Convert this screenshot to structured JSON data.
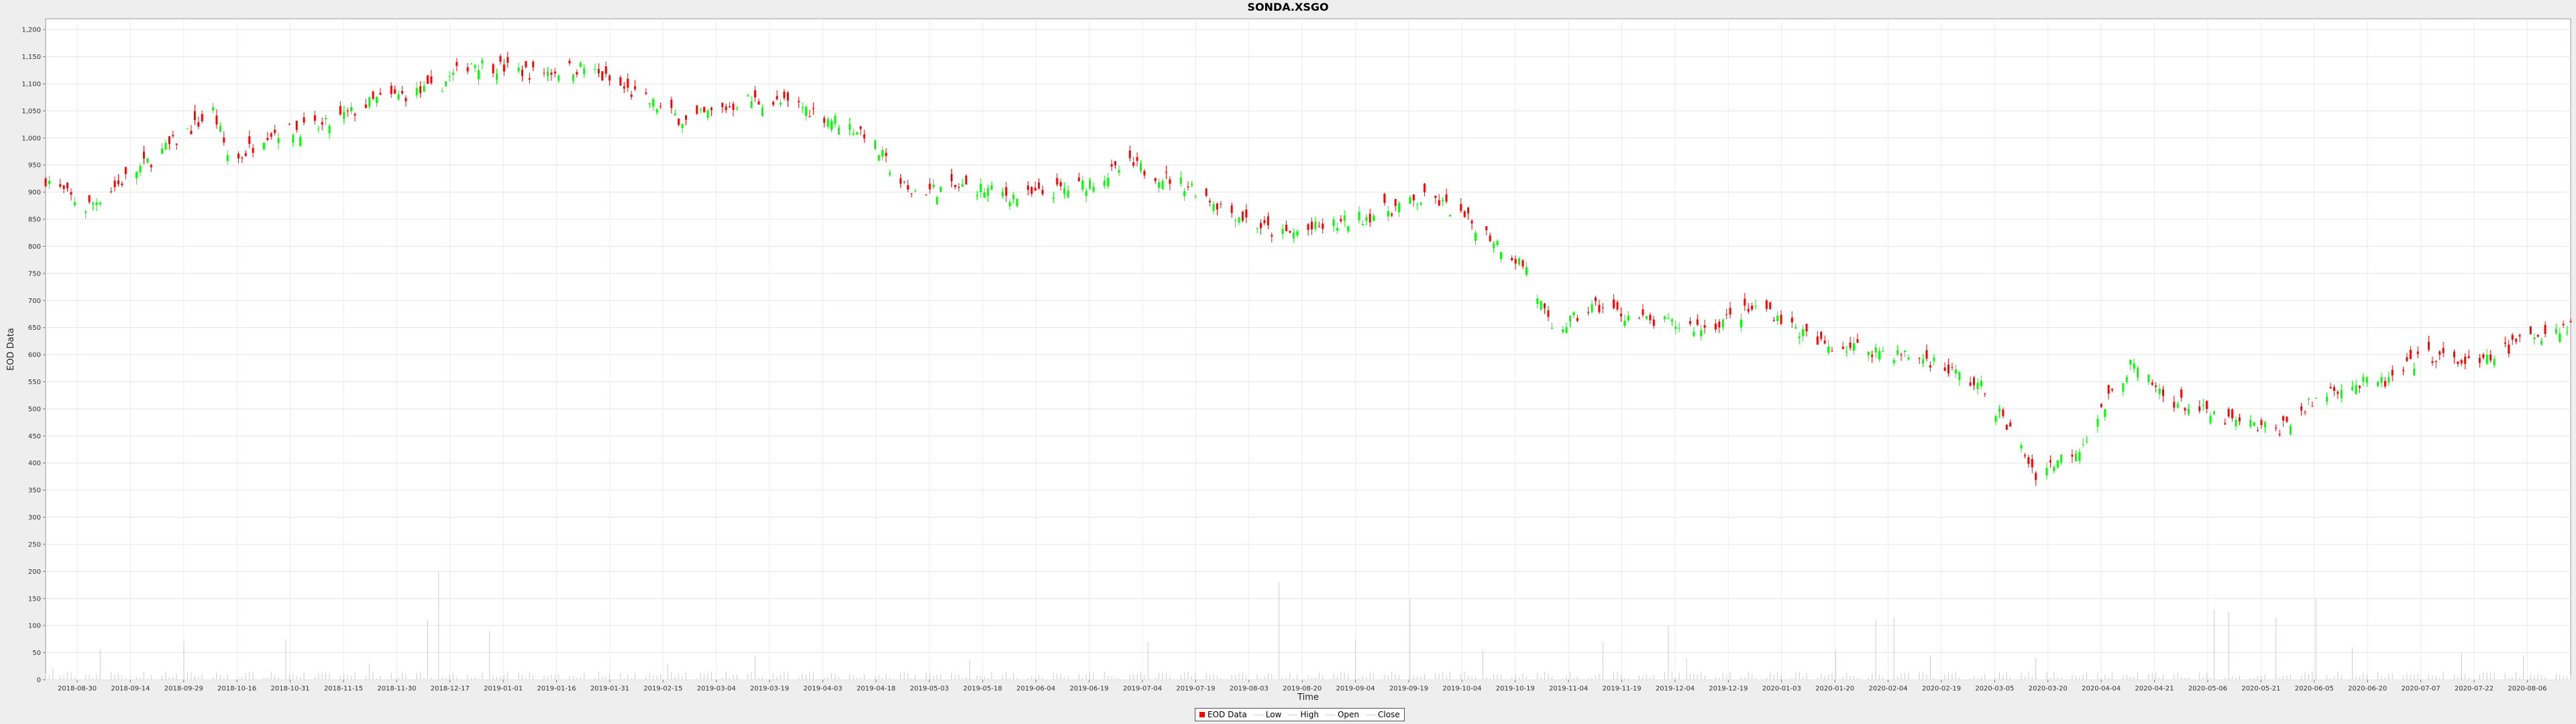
{
  "title": "SONDA.XSGO",
  "chart_data": {
    "type": "candlestick",
    "title": "SONDA.XSGO",
    "xlabel": "Time",
    "ylabel": "EOD Data",
    "ylim": [
      0,
      1220
    ],
    "xlim": [
      "2018-09-20",
      "2020-08-14"
    ],
    "grid": true,
    "legend_position": "bottom-center",
    "up_color": "#00ff00",
    "down_color": "#ff0000",
    "volume_color": "#cccccc",
    "y_ticks": [
      0,
      50,
      100,
      150,
      200,
      250,
      300,
      350,
      400,
      450,
      500,
      550,
      600,
      650,
      700,
      750,
      800,
      850,
      900,
      950,
      1000,
      1050,
      1100,
      1150,
      1200
    ],
    "y_tick_labels": [
      "0",
      "50",
      "100",
      "150",
      "200",
      "250",
      "300",
      "350",
      "400",
      "450",
      "500",
      "550",
      "600",
      "650",
      "700",
      "750",
      "800",
      "850",
      "900",
      "950",
      "1,000",
      "1,050",
      "1,100",
      "1,150",
      "1,200"
    ],
    "x_tick_labels": [
      "2018-08-30",
      "2018-09-14",
      "2018-09-29",
      "2018-10-16",
      "2018-10-31",
      "2018-11-15",
      "2018-11-30",
      "2018-12-17",
      "2019-01-01",
      "2019-01-16",
      "2019-01-31",
      "2019-02-15",
      "2019-03-04",
      "2019-03-19",
      "2019-04-03",
      "2019-04-18",
      "2019-05-03",
      "2019-05-18",
      "2019-06-04",
      "2019-06-19",
      "2019-07-04",
      "2019-07-19",
      "2019-08-03",
      "2019-08-20",
      "2019-09-04",
      "2019-09-19",
      "2019-10-04",
      "2019-10-19",
      "2019-11-04",
      "2019-11-19",
      "2019-12-04",
      "2019-12-19",
      "2020-01-03",
      "2020-01-20",
      "2020-02-04",
      "2020-02-19",
      "2020-03-05",
      "2020-03-20",
      "2020-04-04",
      "2020-04-21",
      "2020-05-06",
      "2020-05-21",
      "2020-06-05",
      "2020-06-20",
      "2020-07-07",
      "2020-07-22",
      "2020-08-06"
    ],
    "close_trend": [
      {
        "t": "2018-09-20",
        "v": 925
      },
      {
        "t": "2018-10-01",
        "v": 870
      },
      {
        "t": "2018-10-15",
        "v": 940
      },
      {
        "t": "2018-10-25",
        "v": 990
      },
      {
        "t": "2018-11-05",
        "v": 1050
      },
      {
        "t": "2018-11-10",
        "v": 950
      },
      {
        "t": "2018-11-20",
        "v": 1010
      },
      {
        "t": "2018-12-05",
        "v": 1020
      },
      {
        "t": "2018-12-20",
        "v": 1070
      },
      {
        "t": "2019-01-05",
        "v": 1090
      },
      {
        "t": "2019-01-15",
        "v": 1140
      },
      {
        "t": "2019-02-01",
        "v": 1120
      },
      {
        "t": "2019-02-15",
        "v": 1130
      },
      {
        "t": "2019-03-01",
        "v": 1080
      },
      {
        "t": "2019-03-15",
        "v": 1030
      },
      {
        "t": "2019-04-01",
        "v": 1070
      },
      {
        "t": "2019-04-15",
        "v": 1060
      },
      {
        "t": "2019-05-03",
        "v": 1010
      },
      {
        "t": "2019-05-15",
        "v": 900
      },
      {
        "t": "2019-06-01",
        "v": 910
      },
      {
        "t": "2019-06-15",
        "v": 890
      },
      {
        "t": "2019-07-01",
        "v": 910
      },
      {
        "t": "2019-07-15",
        "v": 950
      },
      {
        "t": "2019-08-01",
        "v": 910
      },
      {
        "t": "2019-08-10",
        "v": 870
      },
      {
        "t": "2019-08-25",
        "v": 820
      },
      {
        "t": "2019-09-10",
        "v": 840
      },
      {
        "t": "2019-09-25",
        "v": 870
      },
      {
        "t": "2019-10-06",
        "v": 890
      },
      {
        "t": "2019-10-20",
        "v": 830
      },
      {
        "t": "2019-11-01",
        "v": 760
      },
      {
        "t": "2019-11-08",
        "v": 640
      },
      {
        "t": "2019-11-20",
        "v": 690
      },
      {
        "t": "2019-12-05",
        "v": 660
      },
      {
        "t": "2019-12-20",
        "v": 650
      },
      {
        "t": "2020-01-05",
        "v": 690
      },
      {
        "t": "2020-01-20",
        "v": 620
      },
      {
        "t": "2020-02-04",
        "v": 610
      },
      {
        "t": "2020-02-20",
        "v": 590
      },
      {
        "t": "2020-03-05",
        "v": 540
      },
      {
        "t": "2020-03-15",
        "v": 440
      },
      {
        "t": "2020-03-20",
        "v": 380
      },
      {
        "t": "2020-04-01",
        "v": 430
      },
      {
        "t": "2020-04-15",
        "v": 580
      },
      {
        "t": "2020-04-25",
        "v": 520
      },
      {
        "t": "2020-05-10",
        "v": 480
      },
      {
        "t": "2020-05-25",
        "v": 460
      },
      {
        "t": "2020-06-10",
        "v": 540
      },
      {
        "t": "2020-06-25",
        "v": 550
      },
      {
        "t": "2020-07-05",
        "v": 600
      },
      {
        "t": "2020-07-20",
        "v": 580
      },
      {
        "t": "2020-08-01",
        "v": 630
      },
      {
        "t": "2020-08-14",
        "v": 655
      }
    ],
    "volume_base": 8,
    "volume_spikes": [
      {
        "t": "2018-09-22",
        "v": 20
      },
      {
        "t": "2018-10-05",
        "v": 55
      },
      {
        "t": "2018-10-28",
        "v": 70
      },
      {
        "t": "2018-11-25",
        "v": 75
      },
      {
        "t": "2018-12-18",
        "v": 30
      },
      {
        "t": "2019-01-03",
        "v": 110
      },
      {
        "t": "2019-01-06",
        "v": 200
      },
      {
        "t": "2019-01-20",
        "v": 90
      },
      {
        "t": "2019-03-10",
        "v": 30
      },
      {
        "t": "2019-04-03",
        "v": 45
      },
      {
        "t": "2019-06-01",
        "v": 35
      },
      {
        "t": "2019-07-20",
        "v": 70
      },
      {
        "t": "2019-08-25",
        "v": 180
      },
      {
        "t": "2019-09-15",
        "v": 75
      },
      {
        "t": "2019-09-30",
        "v": 150
      },
      {
        "t": "2019-10-20",
        "v": 55
      },
      {
        "t": "2019-11-22",
        "v": 70
      },
      {
        "t": "2019-12-10",
        "v": 100
      },
      {
        "t": "2019-12-15",
        "v": 40
      },
      {
        "t": "2020-01-25",
        "v": 55
      },
      {
        "t": "2020-02-05",
        "v": 110
      },
      {
        "t": "2020-02-10",
        "v": 115
      },
      {
        "t": "2020-02-20",
        "v": 45
      },
      {
        "t": "2020-03-20",
        "v": 40
      },
      {
        "t": "2020-05-08",
        "v": 130
      },
      {
        "t": "2020-05-12",
        "v": 125
      },
      {
        "t": "2020-05-25",
        "v": 115
      },
      {
        "t": "2020-06-05",
        "v": 150
      },
      {
        "t": "2020-06-15",
        "v": 60
      },
      {
        "t": "2020-07-15",
        "v": 50
      },
      {
        "t": "2020-08-01",
        "v": 45
      }
    ]
  },
  "legend": {
    "items": [
      {
        "label": "EOD Data",
        "color": "#ff0000"
      },
      {
        "label": "Low",
        "color": "#cccccc"
      },
      {
        "label": "High",
        "color": "#cccccc"
      },
      {
        "label": "Open",
        "color": "#cccccc"
      },
      {
        "label": "Close",
        "color": "#cccccc"
      }
    ]
  }
}
